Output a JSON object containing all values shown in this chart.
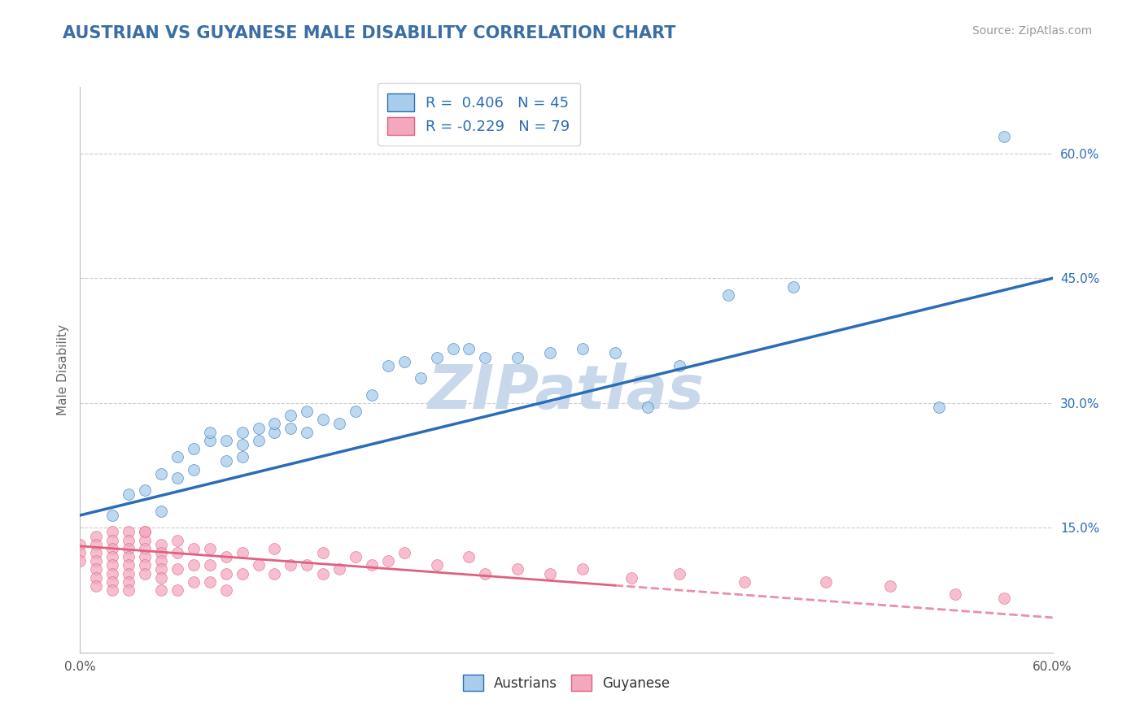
{
  "title": "AUSTRIAN VS GUYANESE MALE DISABILITY CORRELATION CHART",
  "source": "Source: ZipAtlas.com",
  "ylabel": "Male Disability",
  "xmin": 0.0,
  "xmax": 0.6,
  "ymin": 0.0,
  "ymax": 0.68,
  "yticks": [
    0.0,
    0.15,
    0.3,
    0.45,
    0.6
  ],
  "r_austrians": 0.406,
  "n_austrians": 45,
  "r_guyanese": -0.229,
  "n_guyanese": 79,
  "blue_color": "#A8CCEC",
  "pink_color": "#F4A8BE",
  "blue_line_color": "#2B6CB8",
  "pink_line_color": "#E06080",
  "title_color": "#3A6EA5",
  "source_color": "#999999",
  "watermark_color": "#C8D8EA",
  "background_color": "#FFFFFF",
  "grid_color": "#CCCCCC",
  "austrians_x": [
    0.02,
    0.03,
    0.04,
    0.05,
    0.05,
    0.06,
    0.06,
    0.07,
    0.07,
    0.08,
    0.08,
    0.09,
    0.09,
    0.1,
    0.1,
    0.1,
    0.11,
    0.11,
    0.12,
    0.12,
    0.13,
    0.13,
    0.14,
    0.14,
    0.15,
    0.16,
    0.17,
    0.18,
    0.19,
    0.2,
    0.21,
    0.22,
    0.23,
    0.24,
    0.25,
    0.27,
    0.29,
    0.31,
    0.33,
    0.35,
    0.37,
    0.4,
    0.44,
    0.53,
    0.57
  ],
  "austrians_y": [
    0.165,
    0.19,
    0.195,
    0.17,
    0.215,
    0.21,
    0.235,
    0.22,
    0.245,
    0.255,
    0.265,
    0.23,
    0.255,
    0.235,
    0.25,
    0.265,
    0.255,
    0.27,
    0.265,
    0.275,
    0.27,
    0.285,
    0.265,
    0.29,
    0.28,
    0.275,
    0.29,
    0.31,
    0.345,
    0.35,
    0.33,
    0.355,
    0.365,
    0.365,
    0.355,
    0.355,
    0.36,
    0.365,
    0.36,
    0.295,
    0.345,
    0.43,
    0.44,
    0.295,
    0.62
  ],
  "guyanese_x": [
    0.0,
    0.0,
    0.0,
    0.01,
    0.01,
    0.01,
    0.01,
    0.01,
    0.01,
    0.01,
    0.02,
    0.02,
    0.02,
    0.02,
    0.02,
    0.02,
    0.02,
    0.02,
    0.03,
    0.03,
    0.03,
    0.03,
    0.03,
    0.03,
    0.03,
    0.03,
    0.04,
    0.04,
    0.04,
    0.04,
    0.04,
    0.04,
    0.04,
    0.05,
    0.05,
    0.05,
    0.05,
    0.05,
    0.05,
    0.06,
    0.06,
    0.06,
    0.06,
    0.07,
    0.07,
    0.07,
    0.08,
    0.08,
    0.08,
    0.09,
    0.09,
    0.09,
    0.1,
    0.1,
    0.11,
    0.12,
    0.12,
    0.13,
    0.14,
    0.15,
    0.15,
    0.16,
    0.17,
    0.18,
    0.19,
    0.2,
    0.22,
    0.24,
    0.25,
    0.27,
    0.29,
    0.31,
    0.34,
    0.37,
    0.41,
    0.46,
    0.5,
    0.54,
    0.57
  ],
  "guyanese_y": [
    0.13,
    0.12,
    0.11,
    0.14,
    0.13,
    0.12,
    0.11,
    0.1,
    0.09,
    0.08,
    0.145,
    0.135,
    0.125,
    0.115,
    0.105,
    0.095,
    0.085,
    0.075,
    0.145,
    0.135,
    0.125,
    0.115,
    0.105,
    0.095,
    0.085,
    0.075,
    0.145,
    0.135,
    0.125,
    0.115,
    0.105,
    0.095,
    0.145,
    0.13,
    0.12,
    0.11,
    0.1,
    0.09,
    0.075,
    0.135,
    0.12,
    0.1,
    0.075,
    0.125,
    0.105,
    0.085,
    0.125,
    0.105,
    0.085,
    0.115,
    0.095,
    0.075,
    0.12,
    0.095,
    0.105,
    0.125,
    0.095,
    0.105,
    0.105,
    0.095,
    0.12,
    0.1,
    0.115,
    0.105,
    0.11,
    0.12,
    0.105,
    0.115,
    0.095,
    0.1,
    0.095,
    0.1,
    0.09,
    0.095,
    0.085,
    0.085,
    0.08,
    0.07,
    0.065
  ],
  "austrians_line_x": [
    0.0,
    0.6
  ],
  "austrians_line_y": [
    0.165,
    0.45
  ],
  "guyanese_line_x": [
    0.0,
    0.6
  ],
  "guyanese_line_y": [
    0.128,
    0.042
  ],
  "guyanese_line_solid_end": 0.33
}
